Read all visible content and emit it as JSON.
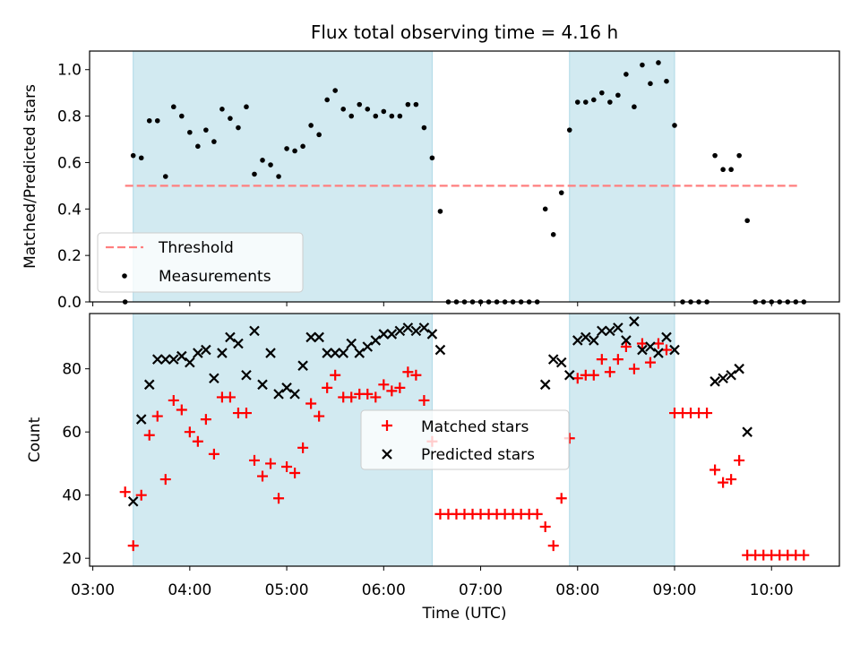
{
  "title": "Flux total observing time = 4.16 h",
  "colors": {
    "shade": "#add8e6",
    "threshold": "#ff7f7f",
    "measurement": "#000000",
    "matched": "#ff0000",
    "predicted": "#000000"
  },
  "chart_data": [
    {
      "type": "scatter",
      "ylabel": "Matched/Predicted stars",
      "ylim": [
        0,
        1.08
      ],
      "xlim": [
        "02:58",
        "10:42"
      ],
      "yticks": [
        "0.0",
        "0.2",
        "0.4",
        "0.6",
        "0.8",
        "1.0"
      ],
      "legend_position": "lower-left",
      "shaded_intervals": [
        [
          "03:25",
          "06:30"
        ],
        [
          "07:55",
          "09:00"
        ]
      ],
      "threshold": {
        "name": "Threshold",
        "value": 0.5,
        "x_range": [
          "03:20",
          "10:17"
        ]
      },
      "series": [
        {
          "name": "Measurements",
          "points": [
            [
              "03:20",
              0.0
            ],
            [
              "03:25",
              0.63
            ],
            [
              "03:30",
              0.62
            ],
            [
              "03:35",
              0.78
            ],
            [
              "03:40",
              0.78
            ],
            [
              "03:45",
              0.54
            ],
            [
              "03:50",
              0.84
            ],
            [
              "03:55",
              0.8
            ],
            [
              "04:00",
              0.73
            ],
            [
              "04:05",
              0.67
            ],
            [
              "04:10",
              0.74
            ],
            [
              "04:15",
              0.69
            ],
            [
              "04:20",
              0.83
            ],
            [
              "04:25",
              0.79
            ],
            [
              "04:30",
              0.75
            ],
            [
              "04:35",
              0.84
            ],
            [
              "04:40",
              0.55
            ],
            [
              "04:45",
              0.61
            ],
            [
              "04:50",
              0.59
            ],
            [
              "04:55",
              0.54
            ],
            [
              "05:00",
              0.66
            ],
            [
              "05:05",
              0.65
            ],
            [
              "05:10",
              0.67
            ],
            [
              "05:15",
              0.76
            ],
            [
              "05:20",
              0.72
            ],
            [
              "05:25",
              0.87
            ],
            [
              "05:30",
              0.91
            ],
            [
              "05:35",
              0.83
            ],
            [
              "05:40",
              0.8
            ],
            [
              "05:45",
              0.85
            ],
            [
              "05:50",
              0.83
            ],
            [
              "05:55",
              0.8
            ],
            [
              "06:00",
              0.82
            ],
            [
              "06:05",
              0.8
            ],
            [
              "06:10",
              0.8
            ],
            [
              "06:15",
              0.85
            ],
            [
              "06:20",
              0.85
            ],
            [
              "06:25",
              0.75
            ],
            [
              "06:30",
              0.62
            ],
            [
              "06:35",
              0.39
            ],
            [
              "06:40",
              0.0
            ],
            [
              "06:45",
              0.0
            ],
            [
              "06:50",
              0.0
            ],
            [
              "06:55",
              0.0
            ],
            [
              "07:00",
              0.0
            ],
            [
              "07:05",
              0.0
            ],
            [
              "07:10",
              0.0
            ],
            [
              "07:15",
              0.0
            ],
            [
              "07:20",
              0.0
            ],
            [
              "07:25",
              0.0
            ],
            [
              "07:30",
              0.0
            ],
            [
              "07:35",
              0.0
            ],
            [
              "07:40",
              0.4
            ],
            [
              "07:45",
              0.29
            ],
            [
              "07:50",
              0.47
            ],
            [
              "07:55",
              0.74
            ],
            [
              "08:00",
              0.86
            ],
            [
              "08:05",
              0.86
            ],
            [
              "08:10",
              0.87
            ],
            [
              "08:15",
              0.9
            ],
            [
              "08:20",
              0.86
            ],
            [
              "08:25",
              0.89
            ],
            [
              "08:30",
              0.98
            ],
            [
              "08:35",
              0.84
            ],
            [
              "08:40",
              1.02
            ],
            [
              "08:45",
              0.94
            ],
            [
              "08:50",
              1.03
            ],
            [
              "08:55",
              0.95
            ],
            [
              "09:00",
              0.76
            ],
            [
              "09:05",
              0.0
            ],
            [
              "09:10",
              0.0
            ],
            [
              "09:15",
              0.0
            ],
            [
              "09:20",
              0.0
            ],
            [
              "09:25",
              0.63
            ],
            [
              "09:30",
              0.57
            ],
            [
              "09:35",
              0.57
            ],
            [
              "09:40",
              0.63
            ],
            [
              "09:45",
              0.35
            ],
            [
              "09:50",
              0.0
            ],
            [
              "09:55",
              0.0
            ],
            [
              "10:00",
              0.0
            ],
            [
              "10:05",
              0.0
            ],
            [
              "10:10",
              0.0
            ],
            [
              "10:15",
              0.0
            ],
            [
              "10:20",
              0.0
            ]
          ]
        }
      ]
    },
    {
      "type": "scatter",
      "xlabel": "Time (UTC)",
      "ylabel": "Count",
      "ylim": [
        17.5,
        97.5
      ],
      "xlim": [
        "02:58",
        "10:42"
      ],
      "yticks": [
        "20",
        "40",
        "60",
        "80"
      ],
      "xticks": [
        "03:00",
        "04:00",
        "05:00",
        "06:00",
        "07:00",
        "08:00",
        "09:00",
        "10:00"
      ],
      "legend_position": "center",
      "shaded_intervals": [
        [
          "03:25",
          "06:30"
        ],
        [
          "07:55",
          "09:00"
        ]
      ],
      "series": [
        {
          "name": "Matched stars",
          "points": [
            [
              "03:20",
              41
            ],
            [
              "03:25",
              24
            ],
            [
              "03:30",
              40
            ],
            [
              "03:35",
              59
            ],
            [
              "03:40",
              65
            ],
            [
              "03:45",
              45
            ],
            [
              "03:50",
              70
            ],
            [
              "03:55",
              67
            ],
            [
              "04:00",
              60
            ],
            [
              "04:05",
              57
            ],
            [
              "04:10",
              64
            ],
            [
              "04:15",
              53
            ],
            [
              "04:20",
              71
            ],
            [
              "04:25",
              71
            ],
            [
              "04:30",
              66
            ],
            [
              "04:35",
              66
            ],
            [
              "04:40",
              51
            ],
            [
              "04:45",
              46
            ],
            [
              "04:50",
              50
            ],
            [
              "04:55",
              39
            ],
            [
              "05:00",
              49
            ],
            [
              "05:05",
              47
            ],
            [
              "05:10",
              55
            ],
            [
              "05:15",
              69
            ],
            [
              "05:20",
              65
            ],
            [
              "05:25",
              74
            ],
            [
              "05:30",
              78
            ],
            [
              "05:35",
              71
            ],
            [
              "05:40",
              71
            ],
            [
              "05:45",
              72
            ],
            [
              "05:50",
              72
            ],
            [
              "05:55",
              71
            ],
            [
              "06:00",
              75
            ],
            [
              "06:05",
              73
            ],
            [
              "06:10",
              74
            ],
            [
              "06:15",
              79
            ],
            [
              "06:20",
              78
            ],
            [
              "06:25",
              70
            ],
            [
              "06:30",
              57
            ],
            [
              "06:35",
              34
            ],
            [
              "06:40",
              34
            ],
            [
              "06:45",
              34
            ],
            [
              "06:50",
              34
            ],
            [
              "06:55",
              34
            ],
            [
              "07:00",
              34
            ],
            [
              "07:05",
              34
            ],
            [
              "07:10",
              34
            ],
            [
              "07:15",
              34
            ],
            [
              "07:20",
              34
            ],
            [
              "07:25",
              34
            ],
            [
              "07:30",
              34
            ],
            [
              "07:35",
              34
            ],
            [
              "07:40",
              30
            ],
            [
              "07:45",
              24
            ],
            [
              "07:50",
              39
            ],
            [
              "07:55",
              58
            ],
            [
              "08:00",
              77
            ],
            [
              "08:05",
              78
            ],
            [
              "08:10",
              78
            ],
            [
              "08:15",
              83
            ],
            [
              "08:20",
              79
            ],
            [
              "08:25",
              83
            ],
            [
              "08:30",
              87
            ],
            [
              "08:35",
              80
            ],
            [
              "08:40",
              88
            ],
            [
              "08:45",
              82
            ],
            [
              "08:50",
              88
            ],
            [
              "08:55",
              86
            ],
            [
              "09:00",
              66
            ],
            [
              "09:05",
              66
            ],
            [
              "09:10",
              66
            ],
            [
              "09:15",
              66
            ],
            [
              "09:20",
              66
            ],
            [
              "09:25",
              48
            ],
            [
              "09:30",
              44
            ],
            [
              "09:35",
              45
            ],
            [
              "09:40",
              51
            ],
            [
              "09:45",
              21
            ],
            [
              "09:50",
              21
            ],
            [
              "09:55",
              21
            ],
            [
              "10:00",
              21
            ],
            [
              "10:05",
              21
            ],
            [
              "10:10",
              21
            ],
            [
              "10:15",
              21
            ],
            [
              "10:20",
              21
            ]
          ]
        },
        {
          "name": "Predicted stars",
          "points": [
            [
              "03:25",
              38
            ],
            [
              "03:30",
              64
            ],
            [
              "03:35",
              75
            ],
            [
              "03:40",
              83
            ],
            [
              "03:45",
              83
            ],
            [
              "03:50",
              83
            ],
            [
              "03:55",
              84
            ],
            [
              "04:00",
              82
            ],
            [
              "04:05",
              85
            ],
            [
              "04:10",
              86
            ],
            [
              "04:15",
              77
            ],
            [
              "04:20",
              85
            ],
            [
              "04:25",
              90
            ],
            [
              "04:30",
              88
            ],
            [
              "04:35",
              78
            ],
            [
              "04:40",
              92
            ],
            [
              "04:45",
              75
            ],
            [
              "04:50",
              85
            ],
            [
              "04:55",
              72
            ],
            [
              "05:00",
              74
            ],
            [
              "05:05",
              72
            ],
            [
              "05:10",
              81
            ],
            [
              "05:15",
              90
            ],
            [
              "05:20",
              90
            ],
            [
              "05:25",
              85
            ],
            [
              "05:30",
              85
            ],
            [
              "05:35",
              85
            ],
            [
              "05:40",
              88
            ],
            [
              "05:45",
              85
            ],
            [
              "05:50",
              87
            ],
            [
              "05:55",
              89
            ],
            [
              "06:00",
              91
            ],
            [
              "06:05",
              91
            ],
            [
              "06:10",
              92
            ],
            [
              "06:15",
              93
            ],
            [
              "06:20",
              92
            ],
            [
              "06:25",
              93
            ],
            [
              "06:30",
              91
            ],
            [
              "06:35",
              86
            ],
            [
              "07:40",
              75
            ],
            [
              "07:45",
              83
            ],
            [
              "07:50",
              82
            ],
            [
              "07:55",
              78
            ],
            [
              "08:00",
              89
            ],
            [
              "08:05",
              90
            ],
            [
              "08:10",
              89
            ],
            [
              "08:15",
              92
            ],
            [
              "08:20",
              92
            ],
            [
              "08:25",
              93
            ],
            [
              "08:30",
              89
            ],
            [
              "08:35",
              95
            ],
            [
              "08:40",
              86
            ],
            [
              "08:45",
              87
            ],
            [
              "08:50",
              85
            ],
            [
              "08:55",
              90
            ],
            [
              "09:00",
              86
            ],
            [
              "09:25",
              76
            ],
            [
              "09:30",
              77
            ],
            [
              "09:35",
              78
            ],
            [
              "09:40",
              80
            ],
            [
              "09:45",
              60
            ]
          ]
        }
      ]
    }
  ]
}
